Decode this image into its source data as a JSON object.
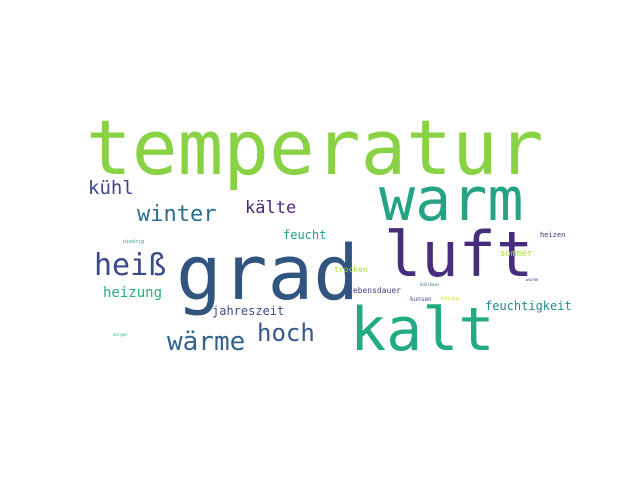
{
  "word_cloud": {
    "words": [
      {
        "id": "temperatur",
        "text": "temperatur",
        "color": "#8ad245"
      },
      {
        "id": "warm",
        "text": "warm",
        "color": "#25a384"
      },
      {
        "id": "grad",
        "text": "grad",
        "color": "#32557f"
      },
      {
        "id": "luft",
        "text": "luft",
        "color": "#472d7b"
      },
      {
        "id": "kalt",
        "text": "kalt",
        "color": "#24aa83"
      },
      {
        "id": "heiss",
        "text": "heiß",
        "color": "#3b4a8b"
      },
      {
        "id": "waerme",
        "text": "wärme",
        "color": "#33638d"
      },
      {
        "id": "hoch",
        "text": "hoch",
        "color": "#39568c"
      },
      {
        "id": "winter",
        "text": "winter",
        "color": "#2c6e8e"
      },
      {
        "id": "kuehl",
        "text": "kühl",
        "color": "#3f4788"
      },
      {
        "id": "kaelte",
        "text": "kälte",
        "color": "#482677"
      },
      {
        "id": "heizung",
        "text": "heizung",
        "color": "#27ad81"
      },
      {
        "id": "feucht",
        "text": "feucht",
        "color": "#1fa088"
      },
      {
        "id": "jahreszeit",
        "text": "jahreszeit",
        "color": "#3e4c8a"
      },
      {
        "id": "feuchtigkeit",
        "text": "feuchtigkeit",
        "color": "#238a8d"
      },
      {
        "id": "trocken",
        "text": "trocken",
        "color": "#a5db36"
      },
      {
        "id": "lebensdauer",
        "text": "lebensdauer",
        "color": "#414487"
      },
      {
        "id": "sommer",
        "text": "sommer",
        "color": "#addc30"
      },
      {
        "id": "heizen",
        "text": "heizen",
        "color": "#472f7d"
      },
      {
        "id": "schwitzen",
        "text": "kunsen",
        "color": "#3b528b"
      },
      {
        "id": "eisig",
        "text": "kälteg",
        "color": "#dde318"
      },
      {
        "id": "kuehlhaus",
        "text": "kühlhaus",
        "color": "#31688e"
      },
      {
        "id": "niedrig",
        "text": "niedrig",
        "color": "#22a884"
      },
      {
        "id": "morgen",
        "text": "morgen",
        "color": "#35b779"
      },
      {
        "id": "gering",
        "text": "wurme",
        "color": "#453781"
      }
    ]
  }
}
